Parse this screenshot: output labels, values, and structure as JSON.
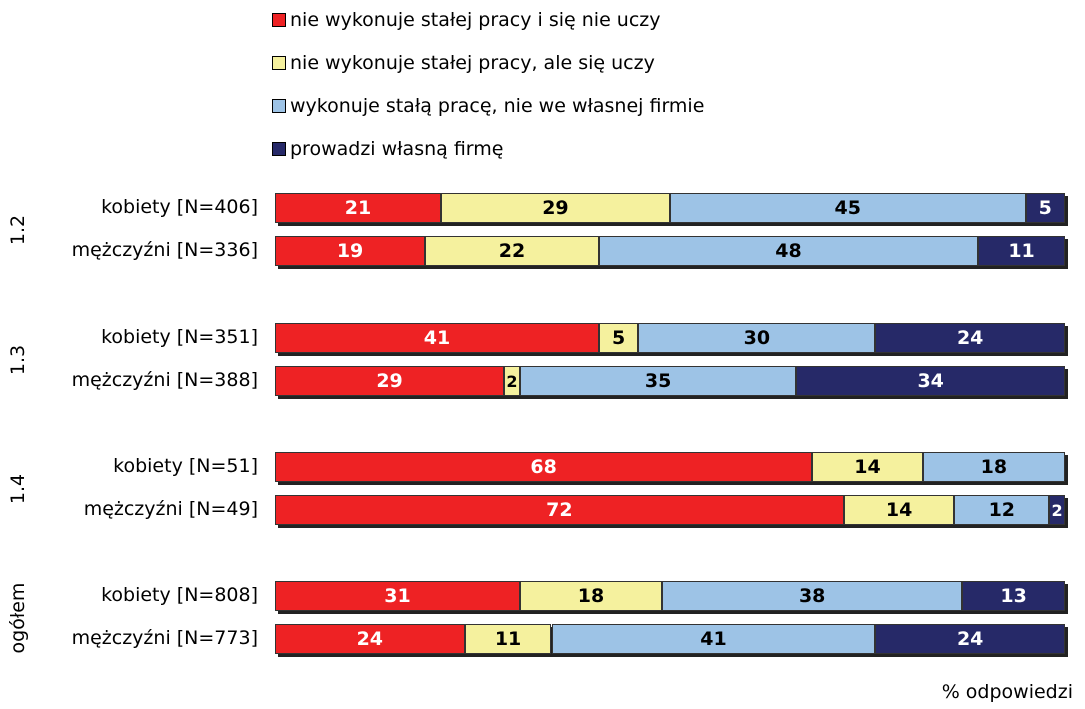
{
  "chart_data": {
    "type": "bar",
    "orientation": "horizontal",
    "stacked": true,
    "normalized": true,
    "xlabel": "% odpowiedzi",
    "xlim": [
      0,
      100
    ],
    "legend_position": "top",
    "series": [
      {
        "name": "nie wykonuje stałej pracy i się nie uczy",
        "color": "#ee2224",
        "label_color": "#ffffff",
        "values": [
          21,
          19,
          41,
          29,
          68,
          72,
          31,
          24
        ]
      },
      {
        "name": "nie wykonuje stałej pracy, ale się uczy",
        "color": "#f5f19e",
        "label_color": "#000000",
        "values": [
          29,
          22,
          5,
          2,
          14,
          14,
          18,
          11
        ]
      },
      {
        "name": "wykonuje stałą pracę, nie we własnej firmie",
        "color": "#9dc3e6",
        "label_color": "#000000",
        "values": [
          45,
          48,
          30,
          35,
          18,
          12,
          38,
          41
        ]
      },
      {
        "name": "prowadzi własną firmę",
        "color": "#262968",
        "label_color": "#ffffff",
        "values": [
          5,
          11,
          24,
          34,
          0,
          2,
          13,
          24
        ]
      }
    ],
    "categories": [
      "kobiety [N=406]",
      "mężczyźni [N=336]",
      "kobiety [N=351]",
      "mężczyźni [N=388]",
      "kobiety [N=51]",
      "mężczyźni [N=49]",
      "kobiety [N=808]",
      "mężczyźni [N=773]"
    ],
    "groups": [
      {
        "label": "1.2",
        "rows": [
          0,
          1
        ]
      },
      {
        "label": "1.3",
        "rows": [
          2,
          3
        ]
      },
      {
        "label": "1.4",
        "rows": [
          4,
          5
        ]
      },
      {
        "label": "ogółem",
        "rows": [
          6,
          7
        ]
      }
    ]
  }
}
